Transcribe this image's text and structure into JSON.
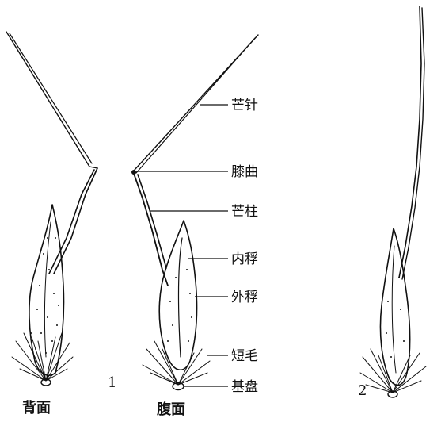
{
  "labels": {
    "awn": "芒针",
    "geniculation": "膝曲",
    "awn_column": "芒柱",
    "palea": "内稃",
    "lemma": "外稃",
    "short_hairs": "短毛",
    "callus": "基盘"
  },
  "captions": {
    "back_view": "背面",
    "ventral_view": "腹面"
  },
  "figure_numbers": {
    "fig1": "1",
    "fig2": "2"
  }
}
